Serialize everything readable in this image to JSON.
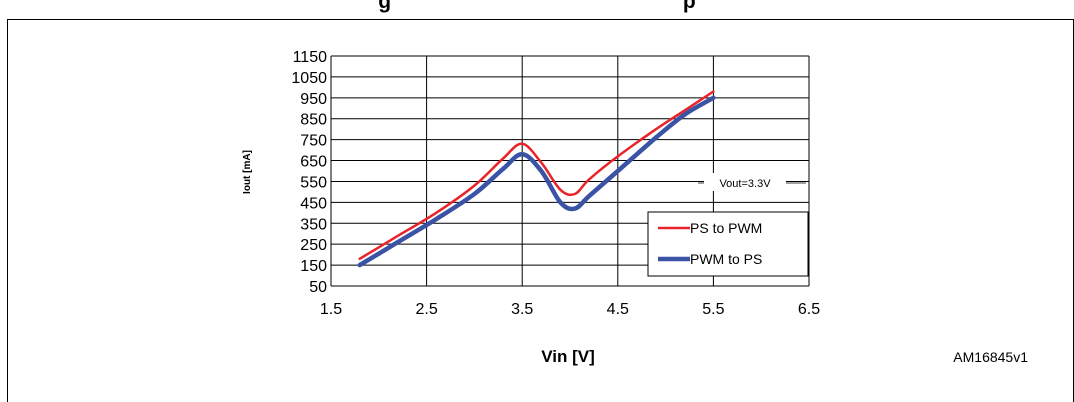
{
  "header": {
    "partial_title": "g                                                  p"
  },
  "figure_code": "AM16845v1",
  "chart_data": {
    "type": "line",
    "title": "",
    "xlabel": "Vin [V]",
    "ylabel": "Iout [mA]",
    "xlim": [
      1.5,
      6.5
    ],
    "ylim": [
      50,
      1150
    ],
    "xticks": [
      "1.5",
      "2.5",
      "3.5",
      "4.5",
      "5.5",
      "6.5"
    ],
    "yticks": [
      "50",
      "150",
      "250",
      "350",
      "450",
      "550",
      "650",
      "750",
      "850",
      "950",
      "1050",
      "1150"
    ],
    "grid": true,
    "legend_position": "bottom-right",
    "annotation": "Vout=3.3V",
    "series": [
      {
        "name": "PS to PWM",
        "color": "#e8242a",
        "x": [
          1.8,
          2.2,
          2.6,
          3.0,
          3.3,
          3.5,
          3.7,
          3.9,
          4.05,
          4.2,
          4.5,
          4.9,
          5.2,
          5.5
        ],
        "y": [
          180,
          290,
          400,
          530,
          660,
          730,
          640,
          510,
          490,
          560,
          670,
          800,
          890,
          980
        ]
      },
      {
        "name": "PWM to PS",
        "color": "#3a53a4",
        "x": [
          1.8,
          2.2,
          2.6,
          3.0,
          3.3,
          3.5,
          3.7,
          3.9,
          4.05,
          4.2,
          4.5,
          4.9,
          5.2,
          5.5
        ],
        "y": [
          150,
          260,
          370,
          490,
          610,
          680,
          600,
          450,
          420,
          480,
          600,
          760,
          870,
          950
        ]
      }
    ]
  }
}
